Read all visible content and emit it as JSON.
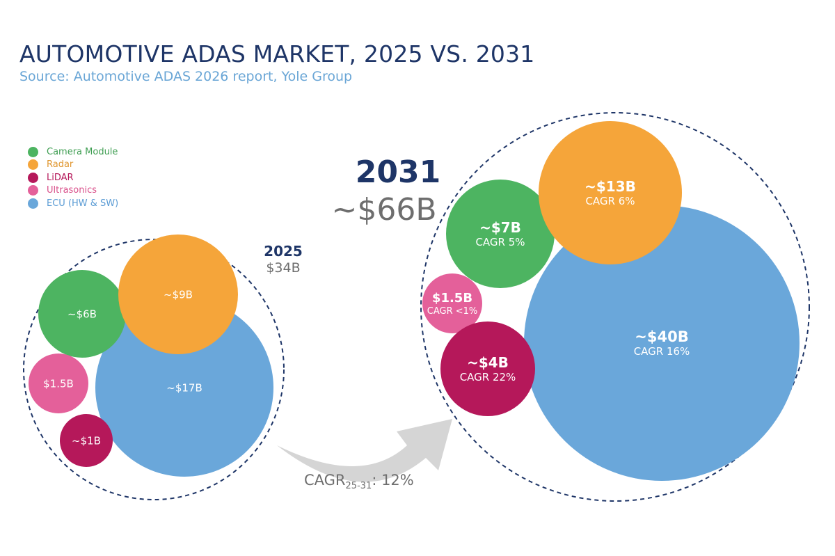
{
  "title": "AUTOMOTIVE ADAS MARKET, 2025 VS. 2031",
  "subtitle": "Source: Automotive ADAS 2026 report, Yole Group",
  "colors": {
    "camera": "#4db461",
    "radar": "#f5a53a",
    "lidar": "#b5185a",
    "ultrasonics": "#e4609a",
    "ecu": "#6aa7da",
    "dark_text": "#1e3567",
    "grey_text": "#6e6e6e",
    "arrow": "#d5d5d5"
  },
  "legend": [
    {
      "label": "Camera Module",
      "color": "#4db461",
      "text_color": "#3f9e52"
    },
    {
      "label": "Radar",
      "color": "#f5a53a",
      "text_color": "#e0962e"
    },
    {
      "label": "LiDAR",
      "color": "#b5185a",
      "text_color": "#b5185a"
    },
    {
      "label": "Ultrasonics",
      "color": "#e4609a",
      "text_color": "#d94f8a"
    },
    {
      "label": "ECU (HW & SW)",
      "color": "#6aa7da",
      "text_color": "#5a9bd4"
    }
  ],
  "cagr": {
    "prefix": "CAGR",
    "sub": "25-31",
    "suffix": ": 12%"
  },
  "chart_data": [
    {
      "type": "bubble",
      "year": "2025",
      "total_label": "$34B",
      "total": 34,
      "series": [
        {
          "name": "Camera Module",
          "value": 6,
          "label": "~$6B"
        },
        {
          "name": "Radar",
          "value": 9,
          "label": "~$9B"
        },
        {
          "name": "LiDAR",
          "value": 1,
          "label": "~$1B"
        },
        {
          "name": "Ultrasonics",
          "value": 1.5,
          "label": "$1.5B"
        },
        {
          "name": "ECU (HW & SW)",
          "value": 17,
          "label": "~$17B"
        }
      ]
    },
    {
      "type": "bubble",
      "year": "2031",
      "total_label": "~$66B",
      "total": 66,
      "series": [
        {
          "name": "Camera Module",
          "value": 7,
          "label": "~$7B",
          "cagr": "CAGR 5%"
        },
        {
          "name": "Radar",
          "value": 13,
          "label": "~$13B",
          "cagr": "CAGR 6%"
        },
        {
          "name": "LiDAR",
          "value": 4,
          "label": "~$4B",
          "cagr": "CAGR 22%"
        },
        {
          "name": "Ultrasonics",
          "value": 1.5,
          "label": "$1.5B",
          "cagr": "CAGR <1%"
        },
        {
          "name": "ECU (HW & SW)",
          "value": 40,
          "label": "~$40B",
          "cagr": "CAGR 16%"
        }
      ]
    }
  ]
}
